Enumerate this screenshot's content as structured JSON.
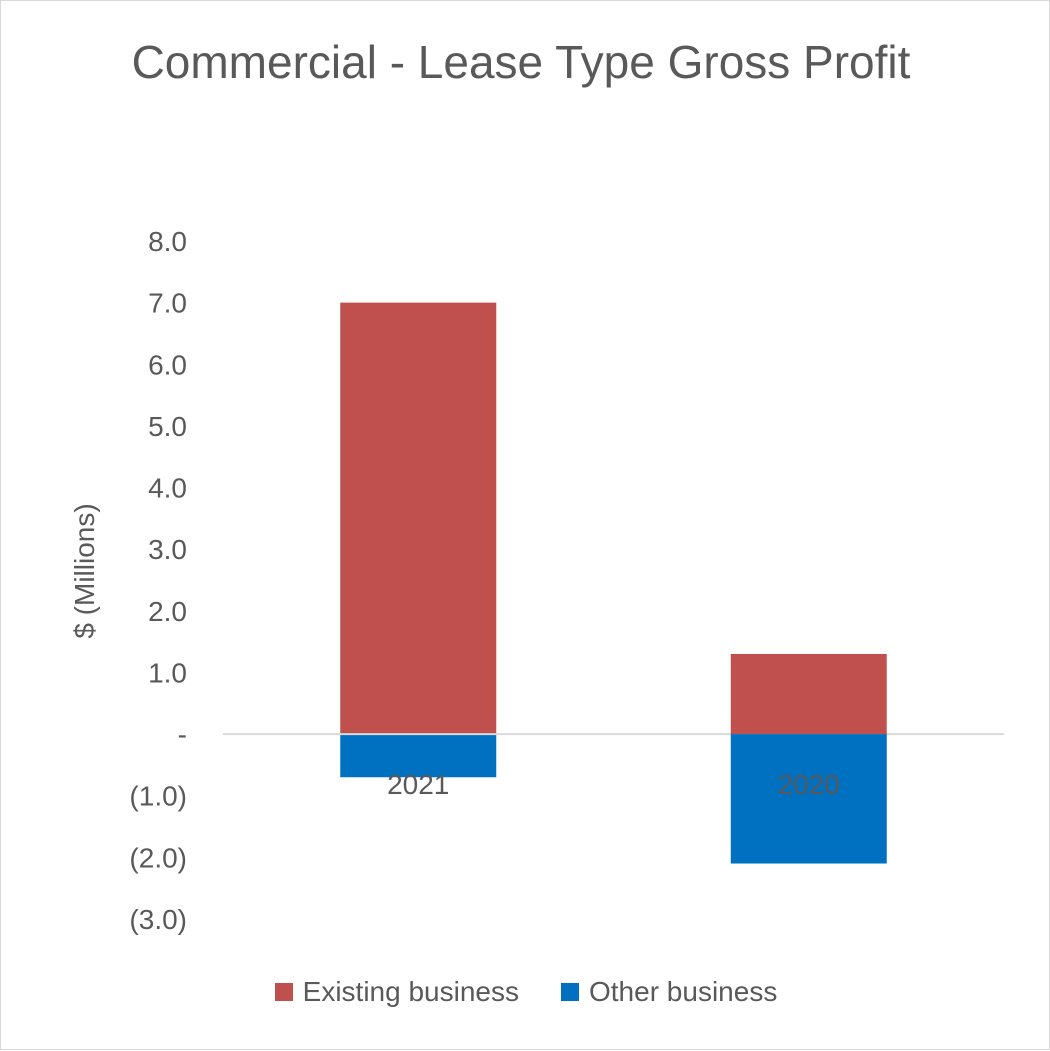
{
  "chart_data": {
    "type": "bar",
    "stacked": true,
    "title": "Commercial - Lease Type Gross Profit",
    "ylabel": "$ (Millions)",
    "xlabel": "",
    "categories": [
      "2021",
      "2020"
    ],
    "series": [
      {
        "name": "Existing business",
        "values": [
          7.0,
          1.3
        ],
        "color": "#C0504D"
      },
      {
        "name": "Other business",
        "values": [
          -0.7,
          -2.1
        ],
        "color": "#0070C0"
      }
    ],
    "ylim": [
      -3.0,
      8.0
    ],
    "yticks": [
      8.0,
      7.0,
      6.0,
      5.0,
      4.0,
      3.0,
      2.0,
      1.0,
      0,
      -1.0,
      -2.0,
      -3.0
    ],
    "ytick_labels": [
      "8.0",
      "7.0",
      "6.0",
      "5.0",
      "4.0",
      "3.0",
      "2.0",
      "1.0",
      "-",
      "(1.0)",
      "(2.0)",
      "(3.0)"
    ],
    "grid": false,
    "legend_position": "bottom"
  }
}
